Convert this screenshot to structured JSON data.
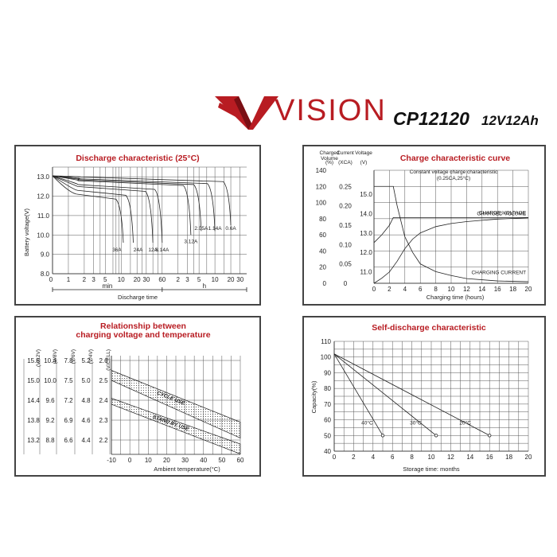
{
  "header": {
    "brand": "VISION",
    "model": "CP12120",
    "spec": "12V12Ah",
    "colors": {
      "brand_red": "#b81c22"
    }
  },
  "chart_data": [
    {
      "type": "line",
      "title": "Discharge characteristic (25°C)",
      "ylabel": "Battery voltage(V)",
      "xlabel": "Discharge time",
      "ylim": [
        8.0,
        13.0
      ],
      "yticks": [
        "13.0",
        "12.0",
        "11.0",
        "10.0",
        "9.0",
        "8.0"
      ],
      "xticks_min": [
        "0",
        "1",
        "2",
        "3",
        "5",
        "10",
        "20",
        "30",
        "60"
      ],
      "xticks_h": [
        "2",
        "3",
        "5",
        "10",
        "20",
        "30"
      ],
      "unit_min": "min",
      "unit_h": "h",
      "grid": true,
      "series": [
        {
          "name": "36A",
          "end_min": 11,
          "end_v": 9.6
        },
        {
          "name": "24A",
          "end_min": 17,
          "end_v": 9.6
        },
        {
          "name": "12A",
          "end_min": 40,
          "end_v": 9.6
        },
        {
          "name": "8.14A",
          "end_min": 60,
          "end_v": 9.6
        },
        {
          "name": "3.12A",
          "end_min": 210,
          "end_v": 10.0
        },
        {
          "name": "2.05A",
          "end_min": 330,
          "end_v": 10.2
        },
        {
          "name": "1.14A",
          "end_min": 600,
          "end_v": 10.2
        },
        {
          "name": "0.6A",
          "end_min": 1200,
          "end_v": 10.5
        }
      ]
    },
    {
      "type": "line",
      "title": "Charge characteristic curve",
      "subtitle": "Constant voltage charge characteristic",
      "subtitle2": "(0.25CA,25°C)",
      "xlabel": "Charging time (hours)",
      "col_headers": [
        "Charged Volume",
        "Current",
        "Voltage"
      ],
      "col_units": [
        "(%)",
        "(XCA)",
        "(V)"
      ],
      "y_volume_ticks": [
        "140",
        "120",
        "100",
        "80",
        "60",
        "40",
        "20",
        "0"
      ],
      "y_current_ticks": [
        "0.25",
        "0.20",
        "0.15",
        "0.10",
        "0.05",
        "0"
      ],
      "y_voltage_ticks": [
        "15.0",
        "14.0",
        "13.0",
        "12.0",
        "11.0"
      ],
      "xticks": [
        "0",
        "2",
        "4",
        "6",
        "8",
        "10",
        "12",
        "14",
        "16",
        "18",
        "20"
      ],
      "grid": true,
      "series": [
        {
          "name": "CHARGED VOLUME",
          "x": [
            0,
            1,
            2,
            3,
            4,
            5,
            6,
            8,
            10,
            12,
            14,
            16,
            18,
            20
          ],
          "y": [
            0,
            8,
            18,
            35,
            55,
            70,
            80,
            90,
            95,
            98,
            100,
            102,
            103,
            104
          ]
        },
        {
          "name": "CHARGE VOLTAGE",
          "x": [
            0,
            1,
            2,
            2.5,
            3,
            20
          ],
          "y": [
            12.5,
            12.9,
            13.4,
            13.8,
            13.8,
            13.8
          ]
        },
        {
          "name": "CHARGING CURRENT",
          "x": [
            0,
            2.5,
            3,
            4,
            5,
            6,
            8,
            10,
            12,
            16,
            20
          ],
          "y": [
            0.25,
            0.25,
            0.2,
            0.12,
            0.08,
            0.05,
            0.03,
            0.02,
            0.012,
            0.006,
            0.004
          ]
        }
      ]
    },
    {
      "type": "area",
      "title": "Relationship between",
      "title2": "charging voltage and temperature",
      "xlabel": "Ambient temperature(°C)",
      "col_headers": [
        "(V/12V)",
        "(V/8V)",
        "(V/6V)",
        "(V/4V)",
        "(V/CELL)"
      ],
      "rows": [
        [
          "15.6",
          "10.4",
          "7.8",
          "5.2",
          "2.6"
        ],
        [
          "15.0",
          "10.0",
          "7.5",
          "5.0",
          "2.5"
        ],
        [
          "14.4",
          "9.6",
          "7.2",
          "4.8",
          "2.4"
        ],
        [
          "13.8",
          "9.2",
          "6.9",
          "4.6",
          "2.3"
        ],
        [
          "13.2",
          "8.8",
          "6.6",
          "4.4",
          "2.2"
        ]
      ],
      "xticks": [
        "-10",
        "0",
        "10",
        "20",
        "30",
        "40",
        "50",
        "60"
      ],
      "bands": [
        {
          "name": "CYCLE USE",
          "x": [
            -10,
            60
          ],
          "upper": [
            2.55,
            2.29
          ],
          "lower": [
            2.5,
            2.21
          ]
        },
        {
          "name": "STAND BY USE",
          "x": [
            -10,
            60
          ],
          "upper": [
            2.41,
            2.18
          ],
          "lower": [
            2.38,
            2.13
          ]
        }
      ]
    },
    {
      "type": "line",
      "title": "Self-discharge characteristic",
      "ylabel": "Capacity(%)",
      "xlabel": "Storage time: months",
      "yticks": [
        "110",
        "100",
        "90",
        "80",
        "70",
        "60",
        "50",
        "40"
      ],
      "xticks": [
        "0",
        "2",
        "4",
        "6",
        "8",
        "10",
        "12",
        "14",
        "16",
        "18",
        "20"
      ],
      "grid": true,
      "series": [
        {
          "name": "40°C",
          "x": [
            0,
            5
          ],
          "y": [
            102,
            50
          ]
        },
        {
          "name": "30°C",
          "x": [
            0,
            10.5
          ],
          "y": [
            102,
            50
          ]
        },
        {
          "name": "20°C",
          "x": [
            0,
            16
          ],
          "y": [
            102,
            50
          ]
        }
      ]
    }
  ]
}
